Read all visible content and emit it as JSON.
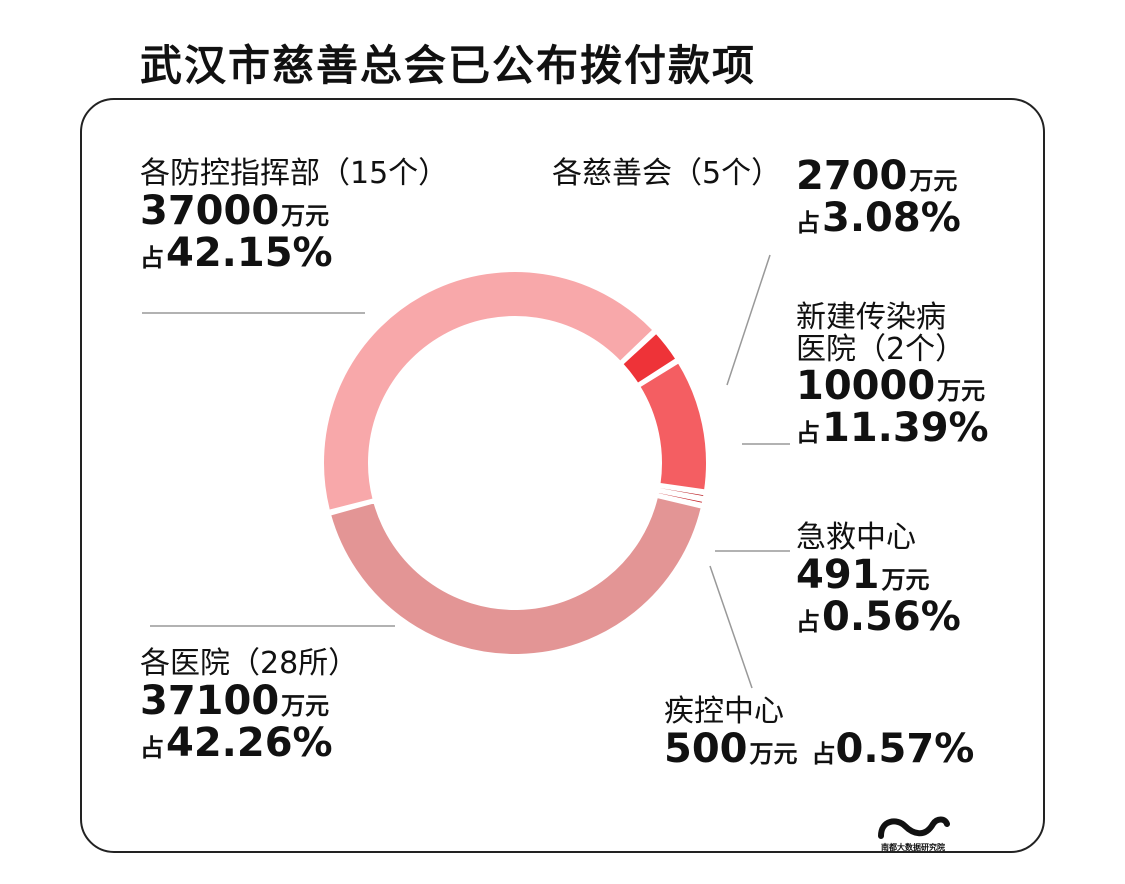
{
  "title": "武汉市慈善总会已公布拨付款项",
  "brand": "南都大数据研究院",
  "chart_data": {
    "type": "pie",
    "donut": true,
    "unit": "万元",
    "percent_prefix": "占",
    "slices": [
      {
        "name": "各防控指挥部（15个）",
        "value": 37000,
        "percent": "42.15%",
        "color": "#F8A8AA"
      },
      {
        "name": "各慈善会（5个）",
        "value": 2700,
        "percent": "3.08%",
        "color": "#EE3338"
      },
      {
        "name": "新建传染病医院（2个）",
        "value": 10000,
        "percent": "11.39%",
        "color": "#F45E62"
      },
      {
        "name": "急救中心",
        "value": 491,
        "percent": "0.56%",
        "color": "#B8161D"
      },
      {
        "name": "疾控中心",
        "value": 500,
        "percent": "0.57%",
        "color": "#C42228"
      },
      {
        "name": "各医院（28所）",
        "value": 37100,
        "percent": "42.26%",
        "color": "#E39595"
      }
    ]
  },
  "labels": {
    "zhihuibu": {
      "name": "各防控指挥部（15个）",
      "amount": "37000",
      "percent": "42.15%"
    },
    "cishan": {
      "name": "各慈善会（5个）",
      "amount": "2700",
      "percent": "3.08%"
    },
    "hospital_new_1": "新建传染病",
    "hospital_new_2": "医院（2个）",
    "hospital_new": {
      "amount": "10000",
      "percent": "11.39%"
    },
    "jijiu": {
      "name": "急救中心",
      "amount": "491",
      "percent": "0.56%"
    },
    "jikong": {
      "name": "疾控中心",
      "amount": "500",
      "percent": "0.57%"
    },
    "yiyuan": {
      "name": "各医院（28所）",
      "amount": "37100",
      "percent": "42.26%"
    },
    "unit": "万元",
    "prefix": "占"
  }
}
